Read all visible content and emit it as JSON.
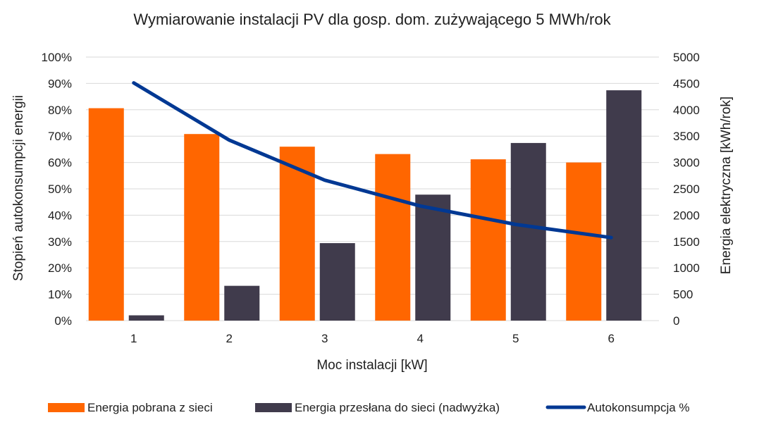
{
  "chart_data": {
    "type": "bar",
    "title": "Wymiarowanie instalacji PV dla gosp. dom. zużywającego 5 MWh/rok",
    "xlabel": "Moc instalacji [kW]",
    "ylabel_left": "Stopień autokonsumpcji energii",
    "ylabel_right": "Energia elektryczna [kWh/rok]",
    "categories": [
      "1",
      "2",
      "3",
      "4",
      "5",
      "6"
    ],
    "ylim_left": [
      0,
      100
    ],
    "yticks_left": [
      "0%",
      "10%",
      "20%",
      "30%",
      "40%",
      "50%",
      "60%",
      "70%",
      "80%",
      "90%",
      "100%"
    ],
    "ylim_right": [
      0,
      5000
    ],
    "yticks_right": [
      "0",
      "500",
      "1000",
      "1500",
      "2000",
      "2500",
      "3000",
      "3500",
      "4000",
      "4500",
      "5000"
    ],
    "grid": true,
    "legend_position": "bottom",
    "series": [
      {
        "name": "Energia pobrana z sieci",
        "kind": "bar",
        "axis": "right",
        "color": "#ff6600",
        "values": [
          4030,
          3540,
          3300,
          3160,
          3060,
          3000
        ]
      },
      {
        "name": "Energia przesłana do sieci (nadwyżka)",
        "kind": "bar",
        "axis": "right",
        "color": "#403b4c",
        "values": [
          100,
          660,
          1470,
          2390,
          3370,
          4370
        ]
      },
      {
        "name": "Autokonsumpcja %",
        "kind": "line",
        "axis": "left",
        "color": "#003893",
        "values": [
          90.2,
          68.5,
          53.3,
          43.5,
          36.5,
          31.5
        ]
      }
    ]
  }
}
